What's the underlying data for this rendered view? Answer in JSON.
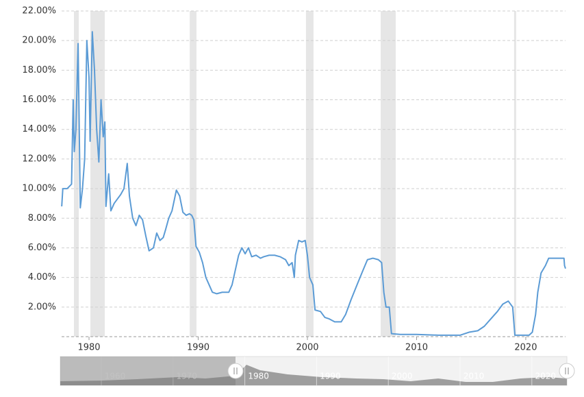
{
  "chart_data": {
    "type": "line",
    "color": "#5b9bd5",
    "grid": true,
    "xlim": [
      1977.49,
      2023.64
    ],
    "xticks": [
      1980,
      1990,
      2000,
      2010,
      2020
    ],
    "ylim": [
      0,
      22
    ],
    "yticks": [
      {
        "value": 2,
        "label": "2.00%"
      },
      {
        "value": 4,
        "label": "4.00%"
      },
      {
        "value": 6,
        "label": "6.00%"
      },
      {
        "value": 8,
        "label": "8.00%"
      },
      {
        "value": 10,
        "label": "10.00%"
      },
      {
        "value": 12,
        "label": "12.00%"
      },
      {
        "value": 14,
        "label": "14.00%"
      },
      {
        "value": 16,
        "label": "16.00%"
      },
      {
        "value": 18,
        "label": "18.00%"
      },
      {
        "value": 20,
        "label": "20.00%"
      },
      {
        "value": 22,
        "label": "22.00%"
      }
    ],
    "shaded_ranges": [
      [
        1978.62,
        1979.06
      ],
      [
        1980.13,
        1981.44
      ],
      [
        1989.22,
        1989.84
      ],
      [
        1999.87,
        2000.56
      ],
      [
        2006.71,
        2008.09
      ],
      [
        2018.93,
        2019.12
      ]
    ],
    "x": [
      1977.5,
      1977.6,
      1978.0,
      1978.4,
      1978.55,
      1978.65,
      1978.8,
      1979.0,
      1979.2,
      1979.4,
      1979.6,
      1979.8,
      1980.0,
      1980.1,
      1980.3,
      1980.5,
      1980.7,
      1980.9,
      1981.1,
      1981.3,
      1981.45,
      1981.55,
      1981.8,
      1982.0,
      1982.3,
      1982.6,
      1982.9,
      1983.2,
      1983.5,
      1983.7,
      1984.0,
      1984.3,
      1984.6,
      1984.9,
      1985.2,
      1985.5,
      1985.9,
      1986.2,
      1986.5,
      1986.8,
      1987.0,
      1987.3,
      1987.6,
      1988.0,
      1988.3,
      1988.6,
      1988.9,
      1989.2,
      1989.4,
      1989.6,
      1989.8,
      1990.1,
      1990.4,
      1990.7,
      1991.0,
      1991.3,
      1991.7,
      1992.2,
      1992.8,
      1993.1,
      1993.4,
      1993.7,
      1994.0,
      1994.3,
      1994.6,
      1994.9,
      1995.3,
      1995.7,
      1996.0,
      1996.5,
      1997.0,
      1997.5,
      1998.0,
      1998.3,
      1998.6,
      1998.8,
      1998.9,
      1999.2,
      1999.5,
      1999.8,
      2000.0,
      2000.2,
      2000.5,
      2000.7,
      2001.2,
      2001.6,
      2002.0,
      2002.5,
      2003.1,
      2003.5,
      2004.0,
      2004.6,
      2005.1,
      2005.5,
      2006.0,
      2006.5,
      2006.8,
      2007.0,
      2007.2,
      2007.5,
      2007.7,
      2008.5,
      2010.0,
      2012.0,
      2014.0,
      2014.8,
      2015.6,
      2016.2,
      2016.8,
      2017.4,
      2017.9,
      2018.4,
      2018.8,
      2019.0,
      2019.5,
      2020.3,
      2020.6,
      2020.9,
      2021.1,
      2021.4,
      2021.8,
      2022.1,
      2022.8,
      2023.5,
      2023.55,
      2023.64
    ],
    "values": [
      8.8,
      10.0,
      10.0,
      10.3,
      16.0,
      12.5,
      14.0,
      19.8,
      8.7,
      10.0,
      12.0,
      20.0,
      17.5,
      13.2,
      20.6,
      18.0,
      14.0,
      11.8,
      16.0,
      13.5,
      14.5,
      8.8,
      11.0,
      8.5,
      9.0,
      9.3,
      9.6,
      10.0,
      11.7,
      9.5,
      8.0,
      7.5,
      8.2,
      7.9,
      6.8,
      5.8,
      6.0,
      7.0,
      6.5,
      6.7,
      7.2,
      8.0,
      8.5,
      9.9,
      9.5,
      8.4,
      8.2,
      8.3,
      8.2,
      7.9,
      6.1,
      5.7,
      5.0,
      4.0,
      3.5,
      3.0,
      2.9,
      3.0,
      3.0,
      3.5,
      4.5,
      5.5,
      6.0,
      5.6,
      6.0,
      5.4,
      5.5,
      5.3,
      5.4,
      5.5,
      5.5,
      5.4,
      5.2,
      4.8,
      5.0,
      4.0,
      5.5,
      6.5,
      6.4,
      6.5,
      5.5,
      4.0,
      3.5,
      1.8,
      1.7,
      1.3,
      1.2,
      1.0,
      1.0,
      1.5,
      2.5,
      3.6,
      4.5,
      5.2,
      5.3,
      5.2,
      5.0,
      3.0,
      2.0,
      2.0,
      0.2,
      0.15,
      0.15,
      0.1,
      0.1,
      0.3,
      0.4,
      0.7,
      1.2,
      1.7,
      2.2,
      2.4,
      2.0,
      0.1,
      0.1,
      0.1,
      0.3,
      1.5,
      3.0,
      4.3,
      4.8,
      5.3,
      5.3,
      5.3,
      4.8,
      4.6
    ]
  },
  "navigator": {
    "labels": [
      "1960",
      "1970",
      "1980",
      "1990",
      "2000",
      "2010",
      "2020"
    ]
  }
}
